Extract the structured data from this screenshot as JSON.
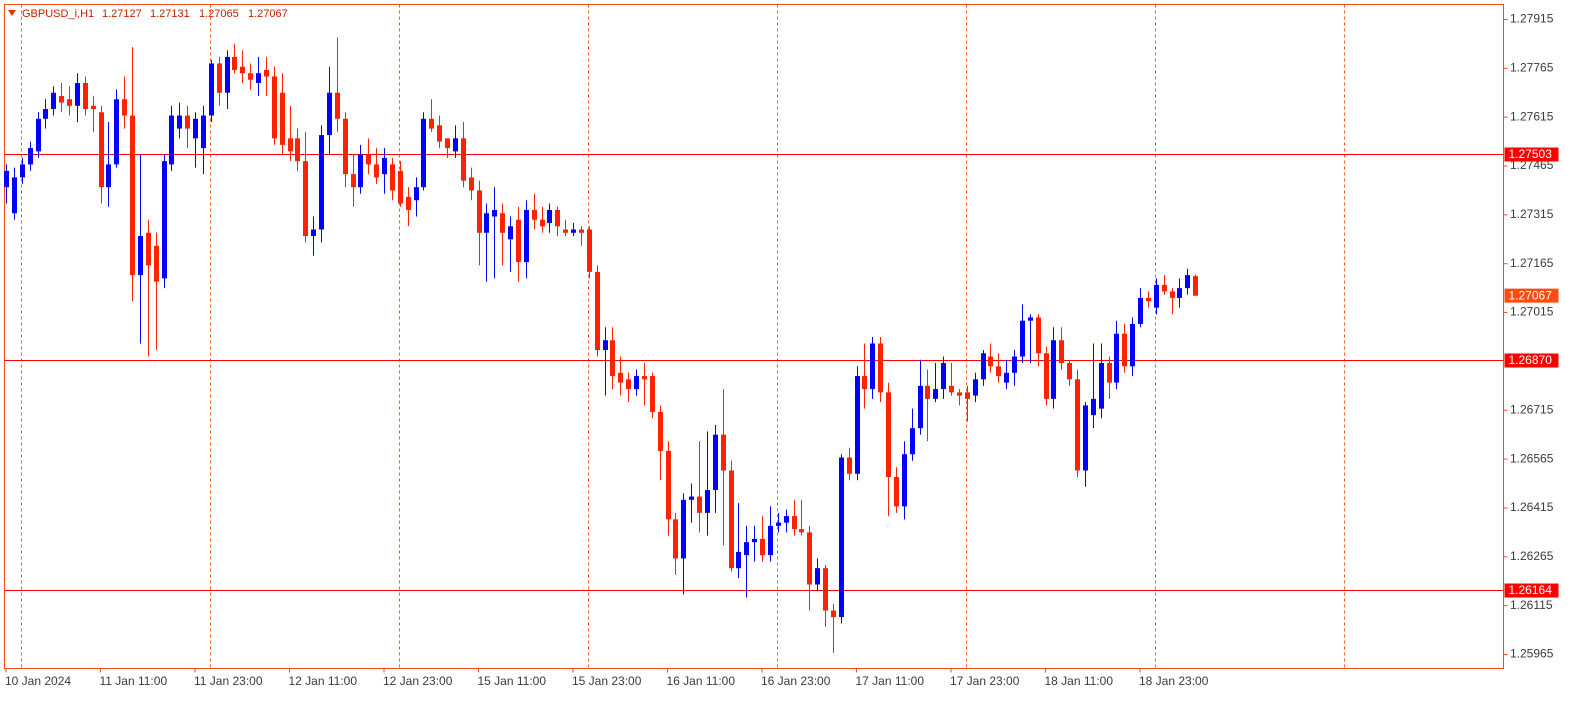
{
  "chart_data": {
    "type": "candlestick",
    "symbol": "GBPUSD_i,H1",
    "up_color": "#0000ff",
    "down_color": "#ff2200",
    "grid": true,
    "ylim": [
      1.25922,
      1.27961
    ],
    "yticks": [
      1.27915,
      1.27765,
      1.27615,
      1.27465,
      1.27315,
      1.27165,
      1.27015,
      1.26715,
      1.26565,
      1.26415,
      1.26265,
      1.26115,
      1.25965
    ],
    "levels": [
      1.27503,
      {
        "value": 1.2687,
        "label": "1.26870"
      },
      1.26164
    ],
    "level_color": "#ff0000",
    "current_price_color": "#ff4a10",
    "categories": [
      "10 Jan 2024",
      null,
      null,
      null,
      null,
      null,
      null,
      null,
      null,
      null,
      null,
      null,
      "11 Jan 11:00",
      null,
      null,
      null,
      null,
      null,
      null,
      null,
      null,
      null,
      null,
      null,
      "11 Jan 23:00",
      null,
      null,
      null,
      null,
      null,
      null,
      null,
      null,
      null,
      null,
      null,
      "12 Jan 11:00",
      null,
      null,
      null,
      null,
      null,
      null,
      null,
      null,
      null,
      null,
      null,
      "12 Jan 23:00",
      null,
      null,
      null,
      null,
      null,
      null,
      null,
      null,
      null,
      null,
      null,
      "15 Jan 11:00",
      null,
      null,
      null,
      null,
      null,
      null,
      null,
      null,
      null,
      null,
      null,
      "15 Jan 23:00",
      null,
      null,
      null,
      null,
      null,
      null,
      null,
      null,
      null,
      null,
      null,
      "16 Jan 11:00",
      null,
      null,
      null,
      null,
      null,
      null,
      null,
      null,
      null,
      null,
      null,
      "16 Jan 23:00",
      null,
      null,
      null,
      null,
      null,
      null,
      null,
      null,
      null,
      null,
      null,
      "17 Jan 11:00",
      null,
      null,
      null,
      null,
      null,
      null,
      null,
      null,
      null,
      null,
      null,
      "17 Jan 23:00",
      null,
      null,
      null,
      null,
      null,
      null,
      null,
      null,
      null,
      null,
      null,
      "18 Jan 11:00",
      null,
      null,
      null,
      null,
      null,
      null,
      null,
      null,
      null,
      null,
      null,
      "18 Jan 23:00",
      null,
      null,
      null,
      null,
      null,
      null,
      null
    ],
    "open": [
      1.274,
      1.2732,
      1.2743,
      1.2747,
      1.2751,
      1.2761,
      1.2764,
      1.2768,
      1.2767,
      1.2765,
      1.2772,
      1.2765,
      1.2763,
      1.274,
      1.2747,
      1.2767,
      1.2762,
      1.2713,
      1.2726,
      1.2722,
      1.2712,
      1.2747,
      1.2758,
      1.2762,
      1.2755,
      1.2752,
      1.2762,
      1.2778,
      1.2769,
      1.278,
      1.2777,
      1.2775,
      1.2772,
      1.2776,
      1.2774,
      1.2769,
      1.2755,
      1.2755,
      1.2748,
      1.2725,
      1.2727,
      1.2756,
      1.2769,
      1.2761,
      1.2744,
      1.274,
      1.275,
      1.2747,
      1.2744,
      1.2747,
      1.2745,
      1.2737,
      1.2736,
      1.274,
      1.2761,
      1.2759,
      1.2755,
      1.2751,
      1.2755,
      1.2743,
      1.2739,
      1.2726,
      1.2731,
      1.2732,
      1.2724,
      1.273,
      1.2717,
      1.2733,
      1.273,
      1.2729,
      1.2733,
      1.2727,
      1.2726,
      1.2727,
      1.2727,
      1.2714,
      1.269,
      1.2693,
      1.2683,
      1.2681,
      1.2678,
      1.2682,
      1.2682,
      1.2671,
      1.2659,
      1.2638,
      1.2626,
      1.2644,
      1.2645,
      1.264,
      1.2647,
      1.2664,
      1.2653,
      1.2623,
      1.2627,
      1.2631,
      1.2632,
      1.2627,
      1.2636,
      1.2637,
      1.2639,
      1.2635,
      1.2634,
      1.2618,
      1.2623,
      1.261,
      1.2608,
      1.2657,
      1.2652,
      1.2682,
      1.2678,
      1.2692,
      1.2677,
      1.2651,
      1.2642,
      1.2658,
      1.2666,
      1.2679,
      1.2675,
      1.2678,
      1.2679,
      1.2677,
      1.2677,
      1.2676,
      1.2681,
      1.2688,
      1.2685,
      1.268,
      1.2683,
      1.2688,
      1.2699,
      1.27,
      1.2689,
      1.2675,
      1.2693,
      1.2686,
      1.2681,
      1.2653,
      1.267,
      1.2672,
      1.2686,
      1.268,
      1.2695,
      1.2685,
      1.2698,
      1.2706,
      1.2703,
      1.271,
      1.2708,
      1.2706,
      1.2709,
      1.27127
    ],
    "high": [
      1.2747,
      1.2746,
      1.2749,
      1.2754,
      1.2763,
      1.2767,
      1.2771,
      1.2772,
      1.2771,
      1.2775,
      1.2774,
      1.2768,
      1.2765,
      1.276,
      1.277,
      1.2774,
      1.2783,
      1.275,
      1.273,
      1.2726,
      1.275,
      1.2765,
      1.2766,
      1.2765,
      1.2763,
      1.2765,
      1.2779,
      1.278,
      1.2782,
      1.2784,
      1.2782,
      1.2778,
      1.278,
      1.278,
      1.2777,
      1.2775,
      1.2765,
      1.2758,
      1.2757,
      1.2731,
      1.2759,
      1.2777,
      1.2786,
      1.2763,
      1.275,
      1.2753,
      1.2755,
      1.2752,
      1.2752,
      1.2749,
      1.2748,
      1.274,
      1.2743,
      1.2763,
      1.2767,
      1.2762,
      1.2755,
      1.2759,
      1.276,
      1.2746,
      1.2742,
      1.2735,
      1.274,
      1.2735,
      1.2731,
      1.2734,
      1.2736,
      1.2738,
      1.2734,
      1.2735,
      1.2734,
      1.273,
      1.2729,
      1.2728,
      1.2728,
      1.2716,
      1.2697,
      1.2697,
      1.2688,
      1.2683,
      1.2684,
      1.2686,
      1.2683,
      1.2673,
      1.2662,
      1.264,
      1.2646,
      1.2649,
      1.2662,
      1.2665,
      1.2667,
      1.2678,
      1.2656,
      1.2643,
      1.2636,
      1.2636,
      1.2639,
      1.2642,
      1.264,
      1.2641,
      1.2644,
      1.2644,
      1.2636,
      1.2626,
      1.2624,
      1.2612,
      1.2658,
      1.266,
      1.2685,
      1.2692,
      1.2694,
      1.2694,
      1.268,
      1.2654,
      1.2662,
      1.2672,
      1.2687,
      1.2684,
      1.2686,
      1.2688,
      1.2686,
      1.2678,
      1.2679,
      1.2683,
      1.269,
      1.2692,
      1.2689,
      1.2687,
      1.269,
      1.2704,
      1.2701,
      1.2701,
      1.2691,
      1.2697,
      1.2697,
      1.2687,
      1.2684,
      1.2674,
      1.2692,
      1.2692,
      1.2688,
      1.2699,
      1.2698,
      1.27,
      1.2709,
      1.2708,
      1.2712,
      1.2713,
      1.2709,
      1.2712,
      1.2715,
      1.27131
    ],
    "low": [
      1.2735,
      1.273,
      1.2741,
      1.2745,
      1.2749,
      1.2758,
      1.2762,
      1.2763,
      1.2762,
      1.276,
      1.2762,
      1.2757,
      1.2735,
      1.2734,
      1.2746,
      1.2758,
      1.2705,
      1.2692,
      1.2688,
      1.269,
      1.2709,
      1.2745,
      1.2755,
      1.2752,
      1.2746,
      1.2744,
      1.276,
      1.2765,
      1.2764,
      1.2775,
      1.2772,
      1.277,
      1.2768,
      1.2768,
      1.2753,
      1.275,
      1.2748,
      1.2745,
      1.2723,
      1.2719,
      1.2723,
      1.275,
      1.2757,
      1.274,
      1.2734,
      1.2738,
      1.2744,
      1.2741,
      1.2738,
      1.2736,
      1.2734,
      1.2728,
      1.2731,
      1.2739,
      1.2757,
      1.2752,
      1.2749,
      1.2749,
      1.274,
      1.2736,
      1.2716,
      1.2711,
      1.2712,
      1.2716,
      1.2714,
      1.2711,
      1.2712,
      1.2727,
      1.2726,
      1.2726,
      1.2725,
      1.2725,
      1.2725,
      1.2722,
      1.2712,
      1.2688,
      1.2676,
      1.2678,
      1.2676,
      1.2674,
      1.2676,
      1.2673,
      1.2669,
      1.265,
      1.2633,
      1.2621,
      1.2615,
      1.2637,
      1.2634,
      1.2633,
      1.264,
      1.263,
      1.2622,
      1.262,
      1.2614,
      1.2625,
      1.2625,
      1.2625,
      1.2634,
      1.2634,
      1.2633,
      1.2633,
      1.261,
      1.2616,
      1.2605,
      1.2597,
      1.2606,
      1.265,
      1.265,
      1.2672,
      1.2675,
      1.2674,
      1.2639,
      1.264,
      1.2638,
      1.2656,
      1.2664,
      1.2662,
      1.2674,
      1.2675,
      1.2676,
      1.2673,
      1.2668,
      1.2674,
      1.2679,
      1.2683,
      1.268,
      1.2678,
      1.2679,
      1.2686,
      1.2686,
      1.2685,
      1.2673,
      1.2672,
      1.2684,
      1.2679,
      1.2651,
      1.2648,
      1.2666,
      1.2669,
      1.2675,
      1.2678,
      1.2683,
      1.2682,
      1.2697,
      1.2703,
      1.2701,
      1.2707,
      1.2701,
      1.2703,
      1.2707,
      1.27065
    ],
    "close": [
      1.2745,
      1.2743,
      1.2747,
      1.2752,
      1.2761,
      1.2764,
      1.2769,
      1.2766,
      1.2765,
      1.2772,
      1.2764,
      1.2764,
      1.274,
      1.2747,
      1.2767,
      1.2762,
      1.2713,
      1.2725,
      1.2716,
      1.2711,
      1.2748,
      1.2762,
      1.2762,
      1.2758,
      1.2761,
      1.2762,
      1.2778,
      1.2769,
      1.278,
      1.2776,
      1.2775,
      1.2773,
      1.2775,
      1.2774,
      1.2755,
      1.2753,
      1.2751,
      1.2748,
      1.2725,
      1.2727,
      1.2756,
      1.2769,
      1.2761,
      1.2744,
      1.274,
      1.275,
      1.2747,
      1.2743,
      1.2749,
      1.2739,
      1.2735,
      1.2733,
      1.274,
      1.2761,
      1.2758,
      1.2754,
      1.2752,
      1.2755,
      1.2742,
      1.2739,
      1.2726,
      1.2732,
      1.2733,
      1.2726,
      1.2728,
      1.2717,
      1.2733,
      1.273,
      1.2728,
      1.2733,
      1.2728,
      1.2726,
      1.2727,
      1.2726,
      1.2714,
      1.269,
      1.2693,
      1.2682,
      1.268,
      1.2678,
      1.2682,
      1.2681,
      1.2671,
      1.2659,
      1.2638,
      1.2626,
      1.2644,
      1.2645,
      1.264,
      1.2647,
      1.2664,
      1.2653,
      1.2623,
      1.2628,
      1.2631,
      1.2632,
      1.2627,
      1.2636,
      1.2637,
      1.2639,
      1.2635,
      1.2634,
      1.2618,
      1.2623,
      1.261,
      1.2608,
      1.2657,
      1.2652,
      1.2682,
      1.2678,
      1.2692,
      1.2677,
      1.2651,
      1.2642,
      1.2658,
      1.2666,
      1.2679,
      1.2675,
      1.2678,
      1.2686,
      1.2677,
      1.2676,
      1.2675,
      1.2681,
      1.2689,
      1.2685,
      1.2682,
      1.2683,
      1.2688,
      1.2699,
      1.27,
      1.2689,
      1.2675,
      1.2693,
      1.2686,
      1.2681,
      1.2653,
      1.2673,
      1.2675,
      1.2686,
      1.268,
      1.2695,
      1.2685,
      1.2698,
      1.2706,
      1.2705,
      1.271,
      1.2708,
      1.2706,
      1.2709,
      1.2713,
      1.27067
    ]
  }
}
